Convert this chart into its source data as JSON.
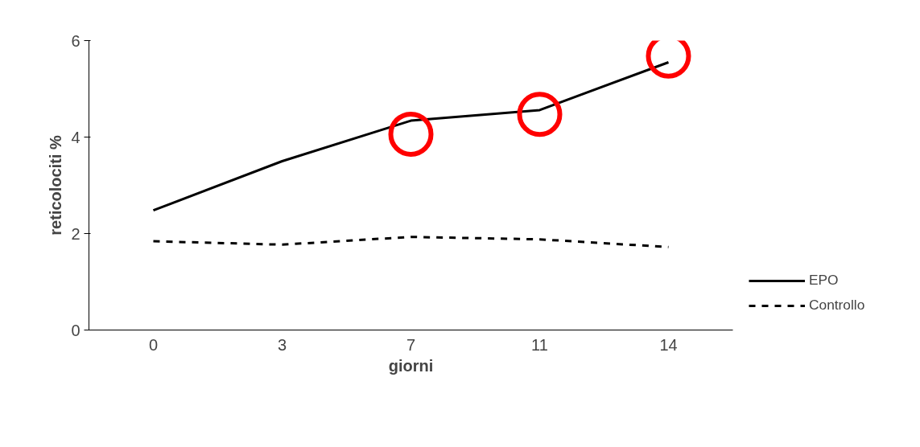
{
  "chart_data": {
    "type": "line",
    "xlabel": "giorni",
    "ylabel": "reticolociti %",
    "categories": [
      "0",
      "3",
      "7",
      "11",
      "14"
    ],
    "series": [
      {
        "name": "EPO",
        "color": "#000000",
        "line_style": "solid",
        "values": [
          2.48,
          3.5,
          4.34,
          4.56,
          5.55
        ]
      },
      {
        "name": "Controllo",
        "color": "#000000",
        "line_style": "dashed",
        "values": [
          1.84,
          1.77,
          1.93,
          1.88,
          1.72
        ]
      },
      {
        "type": "scatter",
        "color": "#ff0000",
        "marker": "circle",
        "x": [
          "7",
          "11",
          "14"
        ],
        "values": [
          4.06,
          4.47,
          5.68
        ]
      }
    ],
    "ylim": [
      0,
      6
    ],
    "yticks": [
      0,
      2,
      4,
      6
    ],
    "grid": false,
    "legend": "right",
    "marker": "none"
  }
}
